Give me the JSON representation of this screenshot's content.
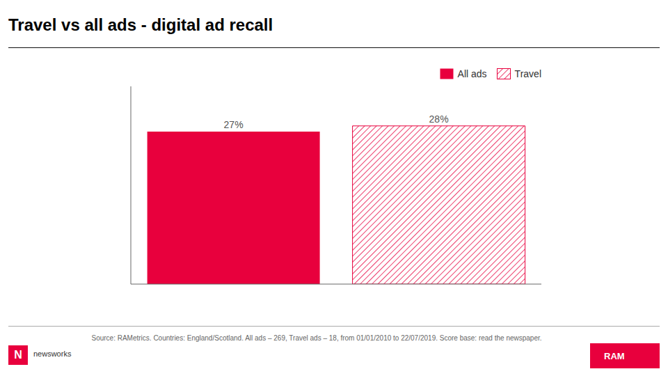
{
  "chart_data": {
    "type": "bar",
    "title": "Travel vs all ads - digital ad recall",
    "categories": [
      "All ads",
      "Travel"
    ],
    "values": [
      27,
      28
    ],
    "value_labels": [
      "27%",
      "28%"
    ],
    "data_labels": true,
    "color": "#E8003D",
    "ylim": [
      0,
      35
    ],
    "legend": "upper right",
    "tick_labels": false,
    "annotations": [
      "Source: RAMetrics. Countries: England/Scotland. All ads – 269, Travel ads – 18, from 01/01/2010 to 22/07/2019. Score base: read the newspaper.",
      "N",
      "newsworks",
      "RAM"
    ]
  }
}
